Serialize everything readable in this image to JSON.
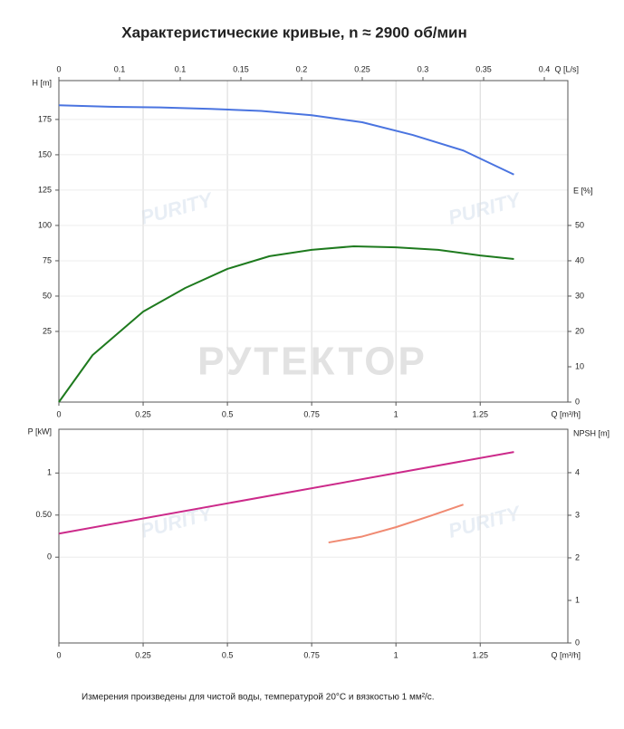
{
  "title": "Характеристические кривые, n ≈ 2900 об/мин",
  "watermark": "РУТЕКТОР",
  "logo": "PURITY",
  "footnote": "Измерения произведены для чистой воды, температурой 20°C и вязкостью 1 мм²/с.",
  "chart_data": [
    {
      "type": "line",
      "xlabel": "Q [m³/h]",
      "xlim": [
        0,
        1.51
      ],
      "xticks": [
        0,
        0.25,
        0.5,
        0.75,
        1,
        1.25
      ],
      "x2label": "Q [L/s]",
      "x2lim": [
        0,
        0.4194
      ],
      "x2ticks": [
        0,
        {
          "value": 0.05,
          "label": "0.1"
        },
        0.1,
        0.15,
        0.2,
        0.25,
        0.3,
        0.35,
        0.4
      ],
      "ylabel": "H [m]",
      "ylim": [
        -25,
        202.5
      ],
      "yticks": [
        25,
        50,
        75,
        100,
        125,
        150,
        175
      ],
      "y2label": "E [%]",
      "y2lim": [
        0,
        91
      ],
      "y2ticks": [
        0,
        10,
        20,
        30,
        40,
        50
      ],
      "grid": true,
      "series": [
        {
          "name": "H",
          "color": "#4a74e0",
          "axis": "y",
          "x": [
            0,
            0.15,
            0.3,
            0.45,
            0.6,
            0.75,
            0.9,
            1.05,
            1.2,
            1.35
          ],
          "values": [
            185,
            184,
            183.5,
            182.5,
            181,
            178,
            173,
            164,
            153,
            136
          ]
        },
        {
          "name": "E",
          "color": "#1e7a1e",
          "axis": "y2",
          "x": [
            0,
            0.1,
            0.25,
            0.375,
            0.5,
            0.625,
            0.75,
            0.875,
            1,
            1.125,
            1.25,
            1.35
          ],
          "values": [
            0,
            13.3,
            25.6,
            32.3,
            37.7,
            41.3,
            43.1,
            44.1,
            43.8,
            43.1,
            41.5,
            40.5
          ]
        }
      ]
    },
    {
      "type": "line",
      "xlabel": "Q [m³/h]",
      "xlim": [
        0,
        1.51
      ],
      "xticks": [
        0,
        0.25,
        0.5,
        0.75,
        1,
        1.25
      ],
      "ylabel": "P [kW]",
      "ylim": [
        -1.02,
        1.52
      ],
      "yticks": [
        0,
        {
          "value": 0.5,
          "label": "0.50"
        },
        1
      ],
      "y2label": "NPSH [m]",
      "y2lim": [
        0,
        5.02
      ],
      "y2ticks": [
        0,
        1,
        2,
        3,
        4
      ],
      "grid": true,
      "series": [
        {
          "name": "P",
          "color": "#cc2a8a",
          "axis": "y",
          "x": [
            0,
            1.35
          ],
          "values": [
            0.28,
            1.25
          ]
        },
        {
          "name": "NPSH",
          "color": "#f08a72",
          "axis": "y2",
          "x": [
            0.8,
            0.9,
            1,
            1.1,
            1.2
          ],
          "values": [
            2.36,
            2.5,
            2.72,
            2.98,
            3.25
          ]
        }
      ]
    }
  ]
}
